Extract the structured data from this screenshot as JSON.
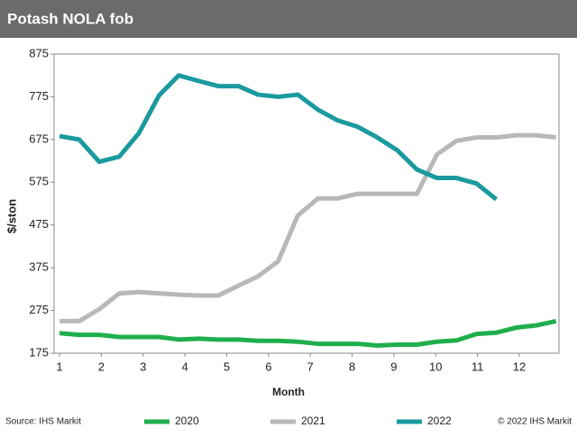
{
  "chart_data": {
    "type": "line",
    "title": "Potash NOLA fob",
    "x_label": "Month",
    "y_label": "$/ston",
    "source": "Source: IHS Markit",
    "copyright": "© 2022 IHS Markit",
    "x": [
      1,
      1.47,
      1.95,
      2.43,
      2.9,
      3.38,
      3.85,
      4.33,
      4.8,
      5.28,
      5.75,
      6.23,
      6.7,
      7.18,
      7.65,
      8.13,
      8.6,
      9.08,
      9.55,
      10.03,
      10.5,
      10.98,
      11.45,
      11.93,
      12.4,
      12.88
    ],
    "series": [
      {
        "name": "2020",
        "color": "#1fae4b",
        "values": [
          222,
          218,
          218,
          213,
          213,
          213,
          207,
          209,
          207,
          207,
          204,
          204,
          202,
          197,
          197,
          197,
          193,
          195,
          195,
          202,
          205,
          220,
          223,
          235,
          240,
          250
        ]
      },
      {
        "name": "2021",
        "color": "#b8b8b8",
        "values": [
          250,
          250,
          278,
          315,
          318,
          315,
          312,
          310,
          310,
          333,
          355,
          390,
          497,
          537,
          537,
          548,
          548,
          548,
          548,
          640,
          672,
          680,
          680,
          685,
          685,
          680
        ]
      },
      {
        "name": "2022",
        "color": "#1a9a9f",
        "values": [
          683,
          675,
          623,
          635,
          690,
          778,
          825,
          812,
          800,
          800,
          780,
          775,
          780,
          745,
          720,
          705,
          680,
          650,
          605,
          585,
          585,
          572,
          535,
          null,
          null,
          null
        ]
      }
    ],
    "xlim": [
      0.87,
      12.95
    ],
    "xticks": [
      1,
      2,
      3,
      4,
      5,
      6,
      7,
      8,
      9,
      10,
      11,
      12
    ],
    "ylim": [
      175,
      875
    ],
    "yticks": [
      175,
      275,
      375,
      475,
      575,
      675,
      775,
      875
    ],
    "grid": false
  }
}
